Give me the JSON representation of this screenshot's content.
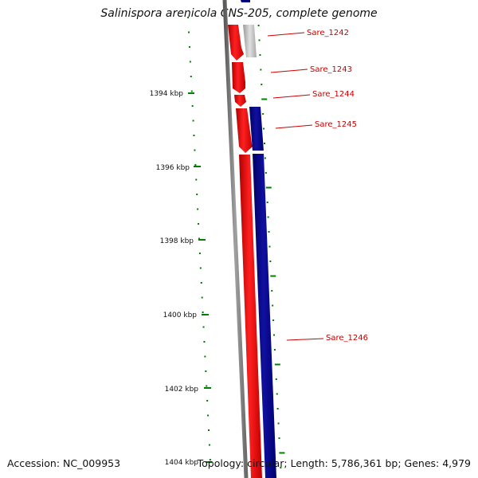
{
  "title": "Salinispora arenicola CNS-205, complete genome",
  "footer": {
    "accession": "Accession: NC_009953",
    "summary": "Topology: circular; Length: 5,786,361 bp; Genes: 4,979"
  },
  "scale": {
    "unit": "kbp",
    "ticks": [
      "1394 kbp",
      "1396 kbp",
      "1398 kbp",
      "1400 kbp",
      "1402 kbp",
      "1404 kbp"
    ]
  },
  "genes": [
    {
      "name": "Sare_1242",
      "strand": "reverse",
      "color": "#c0c0c0"
    },
    {
      "name": "Sare_1243",
      "strand": "forward",
      "color": "#ff0000"
    },
    {
      "name": "Sare_1244",
      "strand": "forward",
      "color": "#ff0000"
    },
    {
      "name": "Sare_1245",
      "strand": "forward",
      "color": "#ff0000"
    },
    {
      "name": "Sare_1246",
      "strand": "reverse",
      "color": "#00007f"
    }
  ],
  "colors": {
    "forward": "#ff0000",
    "reverse": "#00007f",
    "backbone": "#808080",
    "minor_tick": "#008000",
    "label": "#cc0000"
  }
}
